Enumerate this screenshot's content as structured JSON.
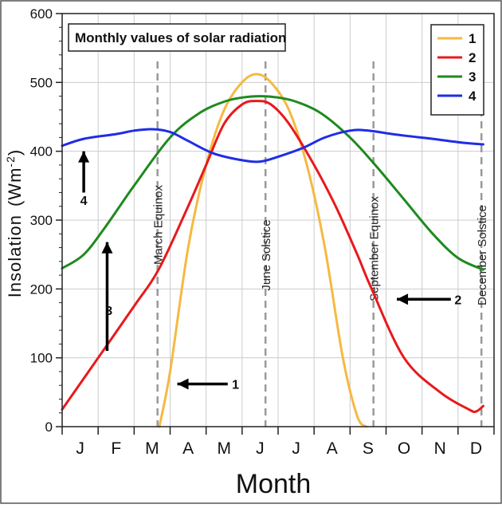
{
  "chart_data": {
    "type": "line",
    "title": "Monthly values of solar radiation",
    "xlabel": "Month",
    "ylabel": "Insolation",
    "ylabel_unit": "(Wm",
    "ylabel_unit_exp": "-2",
    "ylabel_unit_close": ")",
    "ylim": [
      0,
      600
    ],
    "yticks": [
      0,
      100,
      200,
      300,
      400,
      500,
      600
    ],
    "ytick_labels": [
      "0",
      "100",
      "200",
      "300",
      "400",
      "500",
      "600"
    ],
    "xlim": [
      0,
      12
    ],
    "months": [
      "J",
      "F",
      "M",
      "A",
      "M",
      "J",
      "J",
      "A",
      "S",
      "O",
      "N",
      "D"
    ],
    "grid": true,
    "legend_position": "top-right",
    "series": [
      {
        "name": "1",
        "color": "#f5b942",
        "points": [
          [
            2.7,
            0
          ],
          [
            3.0,
            80
          ],
          [
            3.5,
            260
          ],
          [
            4.0,
            380
          ],
          [
            4.5,
            460
          ],
          [
            5.0,
            500
          ],
          [
            5.4,
            512
          ],
          [
            5.8,
            500
          ],
          [
            6.3,
            460
          ],
          [
            6.8,
            380
          ],
          [
            7.3,
            260
          ],
          [
            7.8,
            100
          ],
          [
            8.2,
            15
          ],
          [
            8.45,
            0
          ]
        ]
      },
      {
        "name": "2",
        "color": "#e8191c",
        "points": [
          [
            0.0,
            25
          ],
          [
            1.0,
            100
          ],
          [
            2.0,
            175
          ],
          [
            2.7,
            230
          ],
          [
            3.5,
            320
          ],
          [
            4.0,
            380
          ],
          [
            4.5,
            440
          ],
          [
            5.0,
            468
          ],
          [
            5.4,
            473
          ],
          [
            5.8,
            468
          ],
          [
            6.3,
            440
          ],
          [
            7.0,
            380
          ],
          [
            7.6,
            320
          ],
          [
            8.2,
            250
          ],
          [
            8.6,
            200
          ],
          [
            9.5,
            100
          ],
          [
            10.5,
            50
          ],
          [
            11.3,
            25
          ],
          [
            11.5,
            22
          ],
          [
            11.7,
            30
          ]
        ]
      },
      {
        "name": "3",
        "color": "#1e8a1e",
        "points": [
          [
            0.0,
            230
          ],
          [
            0.6,
            250
          ],
          [
            1.2,
            290
          ],
          [
            2.0,
            350
          ],
          [
            3.0,
            420
          ],
          [
            3.8,
            455
          ],
          [
            4.5,
            472
          ],
          [
            5.0,
            478
          ],
          [
            5.5,
            480
          ],
          [
            6.0,
            478
          ],
          [
            6.5,
            472
          ],
          [
            7.2,
            455
          ],
          [
            8.0,
            420
          ],
          [
            8.7,
            380
          ],
          [
            9.5,
            330
          ],
          [
            10.3,
            280
          ],
          [
            11.0,
            245
          ],
          [
            11.7,
            228
          ]
        ]
      },
      {
        "name": "4",
        "color": "#1f2de6",
        "points": [
          [
            0.0,
            408
          ],
          [
            0.6,
            418
          ],
          [
            1.5,
            425
          ],
          [
            2.0,
            430
          ],
          [
            2.5,
            432
          ],
          [
            3.0,
            428
          ],
          [
            3.5,
            415
          ],
          [
            4.2,
            397
          ],
          [
            5.0,
            387
          ],
          [
            5.5,
            385
          ],
          [
            6.0,
            392
          ],
          [
            6.7,
            405
          ],
          [
            7.3,
            420
          ],
          [
            8.0,
            430
          ],
          [
            8.5,
            430
          ],
          [
            9.3,
            424
          ],
          [
            10.3,
            418
          ],
          [
            11.2,
            412
          ],
          [
            11.7,
            410
          ]
        ]
      }
    ],
    "reference_lines": [
      {
        "label": "March Equinox",
        "x": 2.65
      },
      {
        "label": "June Solstice",
        "x": 5.65
      },
      {
        "label": "September Equinox",
        "x": 8.65
      },
      {
        "label": "December Solstice",
        "x": 11.65
      }
    ],
    "annotations": [
      {
        "label": "1",
        "direction": "left"
      },
      {
        "label": "2",
        "direction": "left"
      },
      {
        "label": "3",
        "direction": "up"
      },
      {
        "label": "4",
        "direction": "up"
      }
    ]
  }
}
